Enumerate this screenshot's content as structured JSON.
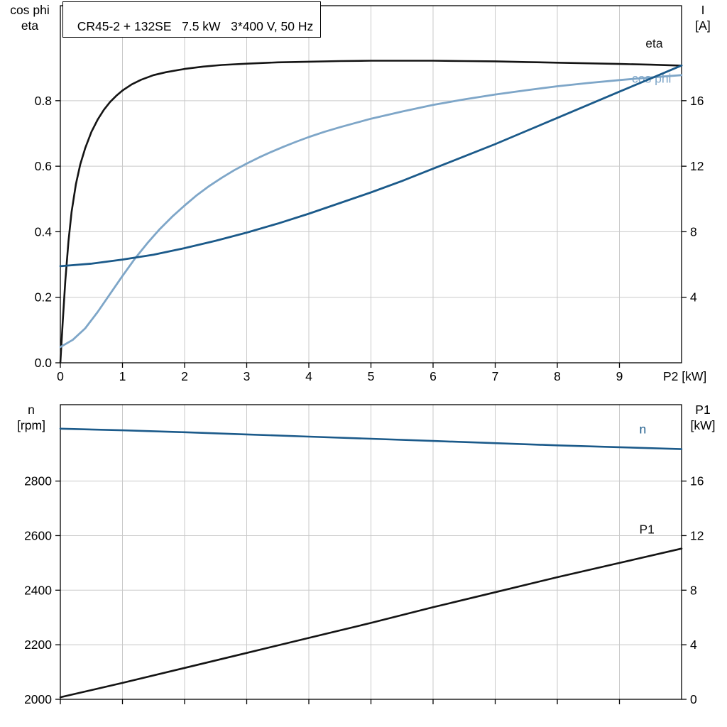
{
  "colors": {
    "black_curve": "#141414",
    "dark_blue": "#1b5a8a",
    "light_blue": "#7ea6c8",
    "grid": "#c9c9c9",
    "frame": "#000000",
    "text": "#000000"
  },
  "chart_data": [
    {
      "name": "motor-top-chart",
      "type": "line",
      "title": "CR45-2 + 132SE   7.5 kW   3*400 V, 50 Hz",
      "x": {
        "min": 0,
        "max": 10,
        "tick_values": [
          0,
          1,
          2,
          3,
          4,
          5,
          6,
          7,
          8,
          9
        ],
        "tick_labels": [
          "0",
          "1",
          "2",
          "3",
          "4",
          "5",
          "6",
          "7",
          "8",
          "9"
        ],
        "end_label": "P2 [kW]"
      },
      "left_axis": {
        "title_lines": [
          "cos phi",
          "eta"
        ],
        "min": 0,
        "max": 1.09,
        "ticks": [
          {
            "v": 0.0,
            "t": "0.0"
          },
          {
            "v": 0.2,
            "t": "0.2"
          },
          {
            "v": 0.4,
            "t": "0.4"
          },
          {
            "v": 0.6,
            "t": "0.6"
          },
          {
            "v": 0.8,
            "t": "0.8"
          }
        ]
      },
      "right_axis": {
        "title_lines": [
          "I",
          "[A]"
        ],
        "min": 0,
        "max": 21.8,
        "ticks": [
          {
            "v": 4,
            "t": "4"
          },
          {
            "v": 8,
            "t": "8"
          },
          {
            "v": 12,
            "t": "12"
          },
          {
            "v": 16,
            "t": "16"
          }
        ]
      },
      "series": [
        {
          "name": "eta",
          "axis": "left",
          "color": "#141414",
          "width": 2.6,
          "label": {
            "text": "eta",
            "x": 9.42,
            "y": 0.962,
            "color": "#141414"
          },
          "points": [
            [
              0,
              0
            ],
            [
              0.04,
              0.13
            ],
            [
              0.08,
              0.25
            ],
            [
              0.13,
              0.37
            ],
            [
              0.18,
              0.46
            ],
            [
              0.25,
              0.545
            ],
            [
              0.32,
              0.605
            ],
            [
              0.4,
              0.655
            ],
            [
              0.5,
              0.705
            ],
            [
              0.6,
              0.742
            ],
            [
              0.7,
              0.772
            ],
            [
              0.8,
              0.796
            ],
            [
              0.9,
              0.815
            ],
            [
              1.0,
              0.831
            ],
            [
              1.15,
              0.85
            ],
            [
              1.3,
              0.864
            ],
            [
              1.5,
              0.878
            ],
            [
              1.7,
              0.887
            ],
            [
              2.0,
              0.897
            ],
            [
              2.3,
              0.904
            ],
            [
              2.6,
              0.909
            ],
            [
              3.0,
              0.913
            ],
            [
              3.5,
              0.917
            ],
            [
              4.0,
              0.919
            ],
            [
              4.5,
              0.921
            ],
            [
              5.0,
              0.922
            ],
            [
              5.5,
              0.922
            ],
            [
              6.0,
              0.922
            ],
            [
              6.5,
              0.921
            ],
            [
              7.0,
              0.92
            ],
            [
              7.5,
              0.918
            ],
            [
              8.0,
              0.916
            ],
            [
              8.5,
              0.914
            ],
            [
              9.0,
              0.912
            ],
            [
              9.5,
              0.91
            ],
            [
              10.0,
              0.907
            ]
          ]
        },
        {
          "name": "cos-phi",
          "axis": "left",
          "color": "#7ea6c8",
          "width": 2.8,
          "label": {
            "text": "cos phi",
            "x": 9.2,
            "y": 0.855,
            "color": "#7ea6c8"
          },
          "points": [
            [
              0,
              0.048
            ],
            [
              0.2,
              0.07
            ],
            [
              0.4,
              0.105
            ],
            [
              0.6,
              0.155
            ],
            [
              0.8,
              0.21
            ],
            [
              1.0,
              0.265
            ],
            [
              1.2,
              0.318
            ],
            [
              1.4,
              0.365
            ],
            [
              1.6,
              0.408
            ],
            [
              1.8,
              0.446
            ],
            [
              2.0,
              0.48
            ],
            [
              2.2,
              0.512
            ],
            [
              2.4,
              0.54
            ],
            [
              2.6,
              0.565
            ],
            [
              2.8,
              0.588
            ],
            [
              3.0,
              0.608
            ],
            [
              3.2,
              0.627
            ],
            [
              3.4,
              0.644
            ],
            [
              3.6,
              0.66
            ],
            [
              3.8,
              0.675
            ],
            [
              4.0,
              0.689
            ],
            [
              4.25,
              0.705
            ],
            [
              4.5,
              0.719
            ],
            [
              4.75,
              0.732
            ],
            [
              5.0,
              0.745
            ],
            [
              5.5,
              0.767
            ],
            [
              6.0,
              0.787
            ],
            [
              6.5,
              0.804
            ],
            [
              7.0,
              0.819
            ],
            [
              7.5,
              0.832
            ],
            [
              8.0,
              0.844
            ],
            [
              8.5,
              0.854
            ],
            [
              9.0,
              0.863
            ],
            [
              9.5,
              0.871
            ],
            [
              10.0,
              0.878
            ]
          ]
        },
        {
          "name": "current-I",
          "axis": "right",
          "color": "#1b5a8a",
          "width": 2.8,
          "points": [
            [
              0,
              5.9
            ],
            [
              0.5,
              6.05
            ],
            [
              1.0,
              6.3
            ],
            [
              1.5,
              6.6
            ],
            [
              2.0,
              7.0
            ],
            [
              2.5,
              7.45
            ],
            [
              3.0,
              7.95
            ],
            [
              3.5,
              8.5
            ],
            [
              4.0,
              9.1
            ],
            [
              4.5,
              9.75
            ],
            [
              5.0,
              10.4
            ],
            [
              5.5,
              11.1
            ],
            [
              6.0,
              11.85
            ],
            [
              6.5,
              12.6
            ],
            [
              7.0,
              13.35
            ],
            [
              7.5,
              14.15
            ],
            [
              8.0,
              14.95
            ],
            [
              8.5,
              15.75
            ],
            [
              9.0,
              16.55
            ],
            [
              9.5,
              17.35
            ],
            [
              10.0,
              18.15
            ]
          ]
        }
      ]
    },
    {
      "name": "motor-bottom-chart",
      "type": "line",
      "x": {
        "min": 0,
        "max": 10,
        "tick_values": [
          0,
          1,
          2,
          3,
          4,
          5,
          6,
          7,
          8,
          9
        ],
        "tick_labels": [
          "",
          "",
          "",
          "",
          "",
          "",
          "",
          "",
          "",
          ""
        ],
        "end_label": ""
      },
      "left_axis": {
        "title_lines": [
          "n",
          "[rpm]"
        ],
        "min": 2000,
        "max": 3080,
        "ticks": [
          {
            "v": 2000,
            "t": "2000"
          },
          {
            "v": 2200,
            "t": "2200"
          },
          {
            "v": 2400,
            "t": "2400"
          },
          {
            "v": 2600,
            "t": "2600"
          },
          {
            "v": 2800,
            "t": "2800"
          }
        ]
      },
      "right_axis": {
        "title_lines": [
          "P1",
          "[kW]"
        ],
        "min": 0,
        "max": 21.6,
        "ticks": [
          {
            "v": 0,
            "t": "0"
          },
          {
            "v": 4,
            "t": "4"
          },
          {
            "v": 8,
            "t": "8"
          },
          {
            "v": 12,
            "t": "12"
          },
          {
            "v": 16,
            "t": "16"
          }
        ]
      },
      "series": [
        {
          "name": "speed-n",
          "axis": "left",
          "color": "#1b5a8a",
          "width": 2.6,
          "label": {
            "text": "n",
            "x": 9.32,
            "y": 2975,
            "color": "#1b5a8a"
          },
          "points": [
            [
              0,
              2992
            ],
            [
              1,
              2986
            ],
            [
              2,
              2979
            ],
            [
              3,
              2971
            ],
            [
              4,
              2963
            ],
            [
              5,
              2955
            ],
            [
              6,
              2947
            ],
            [
              7,
              2939
            ],
            [
              8,
              2931
            ],
            [
              9,
              2924
            ],
            [
              10,
              2917
            ]
          ]
        },
        {
          "name": "power-P1",
          "axis": "right",
          "color": "#141414",
          "width": 2.6,
          "label": {
            "text": "P1",
            "x": 9.32,
            "y": 12.15,
            "color": "#141414"
          },
          "points": [
            [
              0,
              0.15
            ],
            [
              1,
              1.2
            ],
            [
              2,
              2.3
            ],
            [
              3,
              3.4
            ],
            [
              4,
              4.5
            ],
            [
              5,
              5.6
            ],
            [
              6,
              6.75
            ],
            [
              7,
              7.85
            ],
            [
              8,
              8.95
            ],
            [
              9,
              10.0
            ],
            [
              10,
              11.05
            ]
          ]
        }
      ]
    }
  ]
}
